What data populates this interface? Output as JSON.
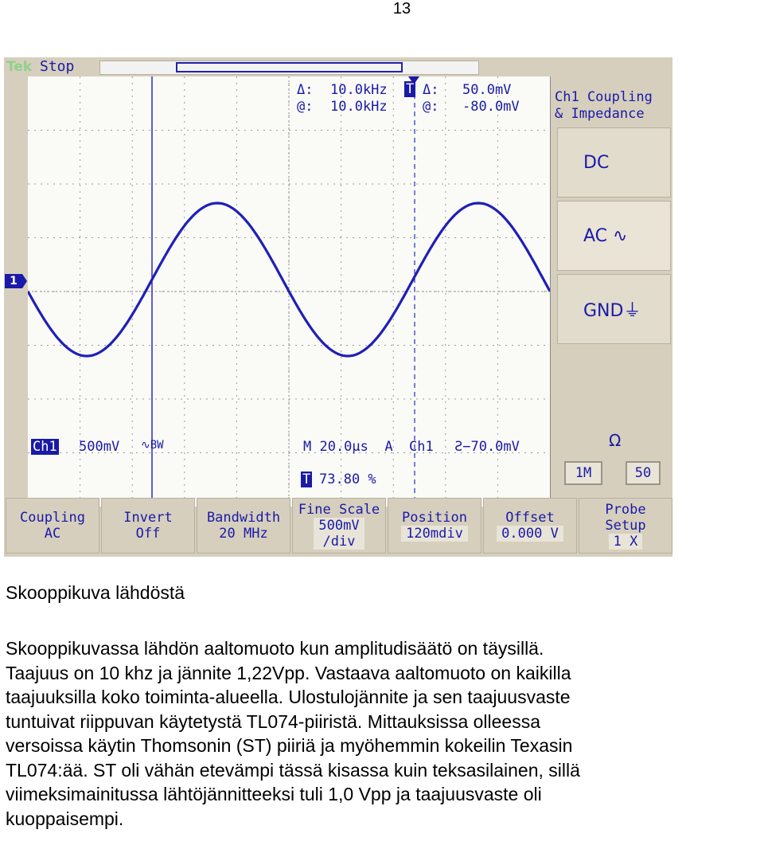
{
  "page": {
    "number": "13"
  },
  "scope": {
    "brand": "Tek",
    "run_state": "Stop",
    "readouts": {
      "delta_label": "Δ:",
      "delta_freq": "10.0kHz",
      "delta_volt_label": "Δ:",
      "delta_volt": "50.0mV",
      "at_label": "@:",
      "at_freq": "10.0kHz",
      "at_volt_label": "@:",
      "at_volt": "-80.0mV",
      "ch1_label": "Ch1",
      "ch1_scale": "500mV",
      "ch1_mark": "∿BW",
      "timebase": "M 20.0µs  A  Ch1",
      "trigger": "Ƨ−70.0mV",
      "trigger_pos": "73.80 %",
      "marker_label": "1"
    },
    "side_menu": {
      "title": "Ch1 Coupling\n& Impedance",
      "options": [
        {
          "label": "DC",
          "selected": false
        },
        {
          "label": "AC ∿",
          "selected": true
        },
        {
          "label": "GND⏚",
          "selected": false
        }
      ],
      "impedance_label": "Ω",
      "impedance_options": [
        "1M",
        "50"
      ]
    },
    "bottom_menu": [
      {
        "title": "Coupling",
        "value": "AC"
      },
      {
        "title": "Invert",
        "value": "Off"
      },
      {
        "title": "Bandwidth",
        "value": "20 MHz"
      },
      {
        "title": "Fine Scale",
        "value": "500mV\n/div"
      },
      {
        "title": "Position",
        "value": "120mdiv"
      },
      {
        "title": "Offset",
        "value": "0.000 V"
      },
      {
        "title": "Probe\nSetup",
        "value": "1 X"
      }
    ],
    "trace_color": "#1f1fb8",
    "background_color": "#d6cfbd"
  },
  "caption": "Skooppikuva lähdöstä",
  "body_lines": [
    "Skooppikuvassa lähdön aaltomuoto kun amplitudisäätö on täysillä.",
    "Taajuus on 10 khz ja jännite 1,22Vpp. Vastaava aaltomuoto on kaikilla",
    "taajuuksilla koko toiminta-alueella. Ulostulojännite ja sen taajuusvaste",
    "tuntuivat riippuvan käytetystä TL074-piiristä. Mittauksissa olleessa",
    "versoissa käytin Thomsonin (ST) piiriä ja myöhemmin kokeilin Texasin",
    "TL074:ää. ST oli vähän etevämpi tässä kisassa kuin teksasilainen, sillä",
    "viimeksimainitussa lähtöjännitteeksi tuli 1,0 Vpp ja taajuusvaste oli",
    "kuoppaisempi."
  ]
}
